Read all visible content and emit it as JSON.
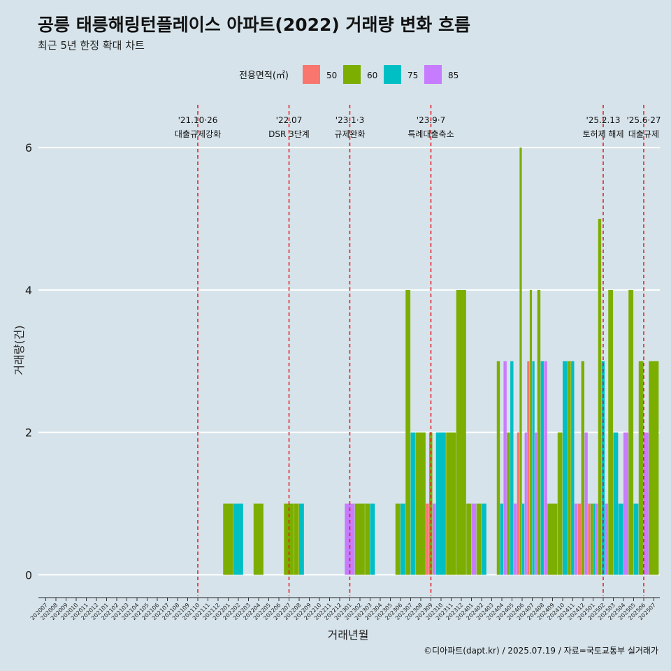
{
  "header": {
    "title": "공릉 태릉해링턴플레이스 아파트(2022) 거래량 변화 흐름",
    "subtitle": "최근 5년 한정 확대 차트"
  },
  "caption": "©디아파트(dapt.kr) / 2025.07.19 / 자료=국토교통부 실거래가",
  "chart_data": {
    "type": "bar",
    "xlabel": "거래년월",
    "ylabel": "거래량(건)",
    "ylim": [
      -0.3,
      6.6
    ],
    "yticks": [
      0,
      2,
      4,
      6
    ],
    "grid": true,
    "legend": {
      "title": "전용면적(㎡)",
      "placement": "top",
      "items": [
        {
          "name": "50",
          "color": "#f8766d"
        },
        {
          "name": "60",
          "color": "#7cae00"
        },
        {
          "name": "75",
          "color": "#00bfc4"
        },
        {
          "name": "85",
          "color": "#c77cff"
        }
      ]
    },
    "categories": [
      "202007",
      "202008",
      "202009",
      "202010",
      "202011",
      "202012",
      "202101",
      "202102",
      "202103",
      "202104",
      "202105",
      "202106",
      "202107",
      "202108",
      "202109",
      "202110",
      "202111",
      "202112",
      "202201",
      "202202",
      "202203",
      "202204",
      "202205",
      "202206",
      "202207",
      "202208",
      "202209",
      "202210",
      "202211",
      "202212",
      "202301",
      "202302",
      "202303",
      "202304",
      "202305",
      "202306",
      "202307",
      "202308",
      "202309",
      "202310",
      "202311",
      "202312",
      "202401",
      "202402",
      "202403",
      "202404",
      "202405",
      "202406",
      "202407",
      "202408",
      "202409",
      "202410",
      "202411",
      "202412",
      "202501",
      "202502",
      "202503",
      "202504",
      "202505",
      "202506",
      "202507"
    ],
    "series": [
      {
        "name": "50",
        "color": "#f8766d",
        "values": [
          0,
          0,
          0,
          0,
          0,
          0,
          0,
          0,
          0,
          0,
          0,
          0,
          0,
          0,
          0,
          0,
          0,
          0,
          0,
          0,
          0,
          0,
          0,
          0,
          0,
          0,
          0,
          0,
          0,
          0,
          0,
          0,
          0,
          0,
          0,
          0,
          0,
          0,
          1,
          0,
          0,
          0,
          0,
          0,
          0,
          0,
          0,
          2,
          3,
          0,
          0,
          0,
          0,
          1,
          1,
          0,
          0,
          0,
          0,
          0,
          0
        ]
      },
      {
        "name": "60",
        "color": "#7cae00",
        "values": [
          0,
          0,
          0,
          0,
          0,
          0,
          0,
          0,
          0,
          0,
          0,
          0,
          0,
          0,
          0,
          0,
          0,
          0,
          1,
          0,
          0,
          1,
          0,
          0,
          1,
          1,
          0,
          0,
          0,
          0,
          0,
          1,
          1,
          0,
          0,
          1,
          4,
          2,
          2,
          0,
          2,
          4,
          1,
          1,
          0,
          3,
          2,
          6,
          4,
          4,
          1,
          2,
          3,
          3,
          1,
          5,
          4,
          0,
          4,
          3,
          3
        ]
      },
      {
        "name": "75",
        "color": "#00bfc4",
        "values": [
          0,
          0,
          0,
          0,
          0,
          0,
          0,
          0,
          0,
          0,
          0,
          0,
          0,
          0,
          0,
          0,
          0,
          0,
          0,
          1,
          0,
          0,
          0,
          0,
          0,
          1,
          0,
          0,
          0,
          0,
          0,
          0,
          1,
          0,
          0,
          1,
          2,
          0,
          0,
          2,
          0,
          0,
          0,
          1,
          0,
          1,
          3,
          1,
          3,
          3,
          0,
          3,
          3,
          0,
          1,
          3,
          2,
          1,
          1,
          0,
          0
        ]
      },
      {
        "name": "85",
        "color": "#c77cff",
        "values": [
          0,
          0,
          0,
          0,
          0,
          0,
          0,
          0,
          0,
          0,
          0,
          0,
          0,
          0,
          0,
          0,
          0,
          0,
          0,
          0,
          0,
          0,
          0,
          0,
          0,
          0,
          0,
          0,
          0,
          0,
          1,
          0,
          0,
          0,
          0,
          0,
          0,
          0,
          1,
          0,
          0,
          0,
          1,
          0,
          0,
          3,
          1,
          2,
          2,
          3,
          0,
          0,
          1,
          2,
          1,
          1,
          0,
          2,
          0,
          2,
          0
        ]
      }
    ],
    "annotations": [
      {
        "month": "202110",
        "date": "'21.10·26",
        "label": "대출규제강화"
      },
      {
        "month": "202207",
        "date": "'22.07",
        "label": "DSR 3단계"
      },
      {
        "month": "202301",
        "date": "'23.1·3",
        "label": "규제완화"
      },
      {
        "month": "202309",
        "date": "'23.9·7",
        "label": "특례대출축소"
      },
      {
        "month": "202502",
        "date": "'25.2.13",
        "label": "토허제 해제"
      },
      {
        "month": "202506",
        "date": "'25.6·27",
        "label": "대출규제"
      }
    ]
  }
}
